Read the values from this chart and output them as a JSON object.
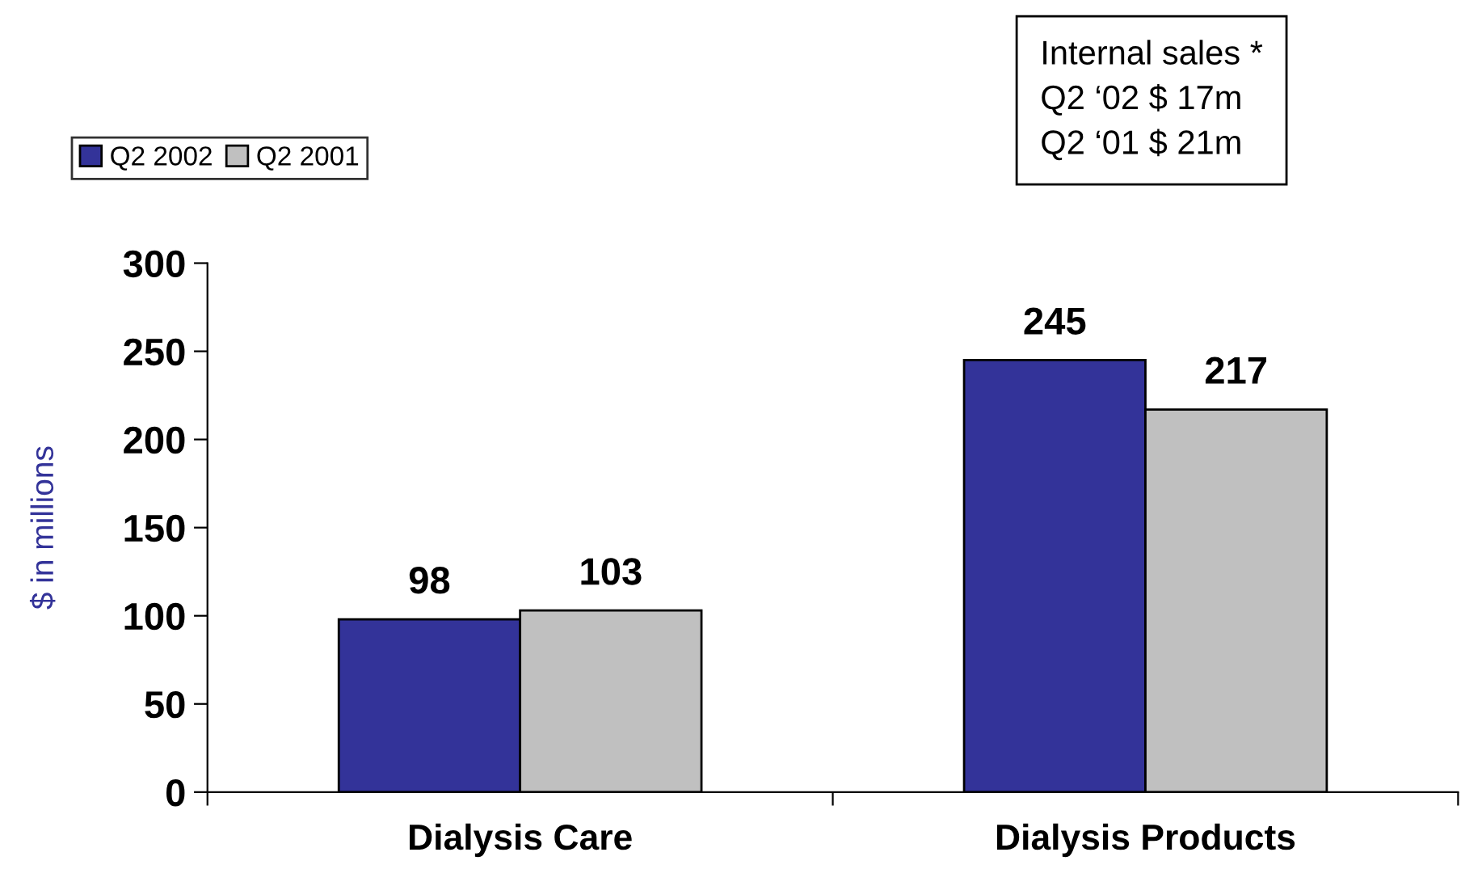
{
  "chart_data": {
    "type": "bar",
    "ylabel": "$ in millions",
    "categories": [
      "Dialysis Care",
      "Dialysis Products"
    ],
    "series": [
      {
        "name": "Q2 2002",
        "color": "#333399",
        "values": [
          98,
          245
        ]
      },
      {
        "name": "Q2 2001",
        "color": "#c0c0c0",
        "values": [
          103,
          217
        ]
      }
    ],
    "data_labels": true,
    "ylim": [
      0,
      300
    ],
    "yticks": [
      0,
      50,
      100,
      150,
      200,
      250,
      300
    ],
    "grid": false,
    "legend": "top left",
    "annotations": [
      "Internal sales *\nQ2 ‘02 $ 17m\nQ2 ‘01 $ 21m"
    ]
  }
}
